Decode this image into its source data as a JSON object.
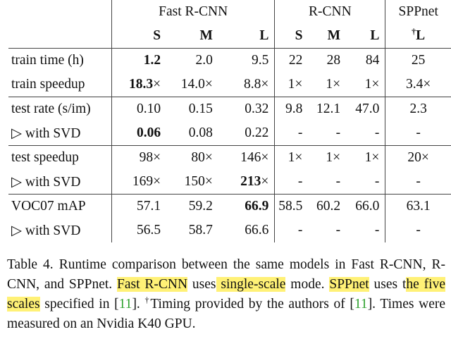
{
  "groups": {
    "fast_rcnn": "Fast R-CNN",
    "rcnn": "R-CNN",
    "sppnet": "SPPnet"
  },
  "subheaders": {
    "s": "S",
    "m": "M",
    "l": "L",
    "rs": "S",
    "rm": "M",
    "rl": "L",
    "spp_dagger": "†",
    "spp_l": "L"
  },
  "rows": [
    {
      "label": "train time (h)",
      "fs": "1.2",
      "fm": "2.0",
      "fl": "9.5",
      "rs": "22",
      "rm": "28",
      "rl": "84",
      "spp": "25",
      "bold": "fs"
    },
    {
      "label": "train speedup",
      "fs": "18.3",
      "fs_x": "×",
      "fm": "14.0×",
      "fl": "8.8×",
      "rs": "1×",
      "rm": "1×",
      "rl": "1×",
      "spp": "3.4×"
    },
    {
      "label": "test rate (s/im)",
      "fs": "0.10",
      "fm": "0.15",
      "fl": "0.32",
      "rs": "9.8",
      "rm": "12.1",
      "rl": "47.0",
      "spp": "2.3"
    },
    {
      "label": "▷ with SVD",
      "fs": "0.06",
      "fm": "0.08",
      "fl": "0.22",
      "rs": "-",
      "rm": "-",
      "rl": "-",
      "spp": "-"
    },
    {
      "label": "test speedup",
      "fs": "98×",
      "fm": "80×",
      "fl": "146×",
      "rs": "1×",
      "rm": "1×",
      "rl": "1×",
      "spp": "20×"
    },
    {
      "label": "▷ with SVD",
      "fs": "169×",
      "fm": "150×",
      "fl": "213",
      "fl_x": "×",
      "rs": "-",
      "rm": "-",
      "rl": "-",
      "spp": "-"
    },
    {
      "label": "VOC07 mAP",
      "fs": "57.1",
      "fm": "59.2",
      "fl": "66.9",
      "rs": "58.5",
      "rm": "60.2",
      "rl": "66.0",
      "spp": "63.1"
    },
    {
      "label": "▷ with SVD",
      "fs": "56.5",
      "fm": "58.7",
      "fl": "66.6",
      "rs": "-",
      "rm": "-",
      "rl": "-",
      "spp": "-"
    }
  ],
  "caption": {
    "p1": "Table 4. Runtime comparison between the same models in Fast R-CNN, R-CNN, and SPPnet. ",
    "hl1": "Fast R-CNN",
    "p2": " uses",
    "hl2": " single-scale",
    "p3": " mode. ",
    "hl3": "SPPnet",
    "p4": " uses t",
    "hl4": "he five scales",
    "p5": " specified in [",
    "ref1": "11",
    "p6": "]. ",
    "dagger": "†",
    "p7": "Timing provided by the authors of [",
    "ref2": "11",
    "p8": "]. Times were measured on an Nvidia K40 GPU."
  }
}
